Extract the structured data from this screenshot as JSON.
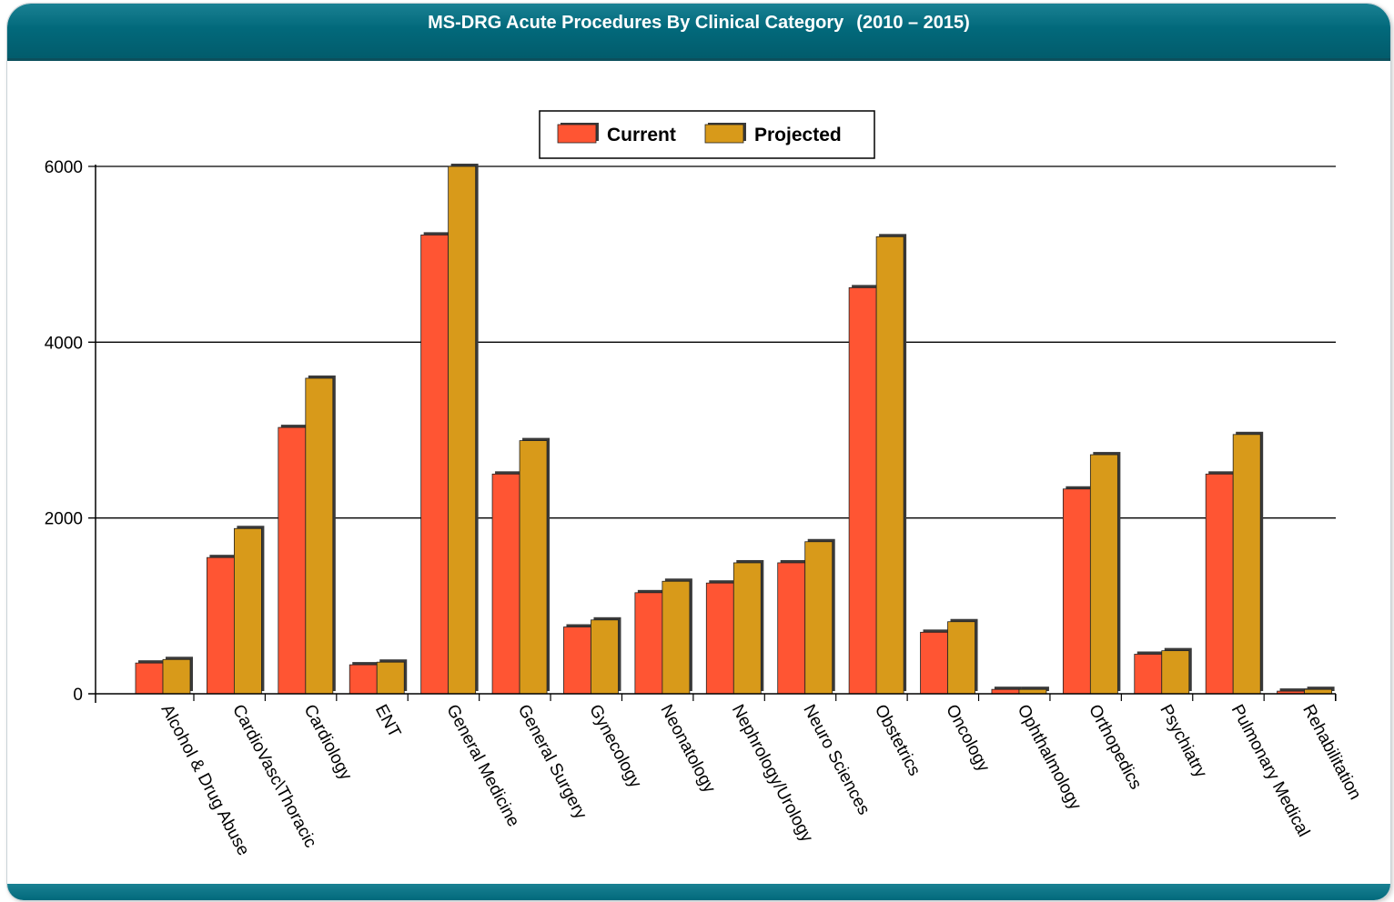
{
  "header": {
    "title": "MS-DRG Acute Procedures By Clinical Category",
    "subtitle": "(2010 – 2015)"
  },
  "colors": {
    "header_bg": "#02697b",
    "current": "#ff5533",
    "projected": "#d89a1a"
  },
  "chart_data": {
    "type": "bar",
    "categories": [
      "Alcohol & Drug Abuse",
      "CardioVasc\\Thoracic",
      "Cardiology",
      "ENT",
      "General Medicine",
      "General Surgery",
      "Gynecology",
      "Neonatology",
      "Nephrology/Urology",
      "Neuro Sciences",
      "Obstetrics",
      "Oncology",
      "Ophthalmology",
      "Orthopedics",
      "Psychiatry",
      "Pulmonary Medical",
      "Rehabilitation"
    ],
    "series": [
      {
        "name": "Current",
        "values": [
          350,
          1550,
          3030,
          330,
          5220,
          2500,
          760,
          1150,
          1260,
          1490,
          4620,
          700,
          50,
          2330,
          450,
          2500,
          30
        ]
      },
      {
        "name": "Projected",
        "values": [
          390,
          1880,
          3590,
          360,
          6000,
          2880,
          840,
          1280,
          1490,
          1730,
          5200,
          820,
          50,
          2720,
          490,
          2950,
          50
        ]
      }
    ],
    "yticks": [
      "0",
      "2000",
      "4000",
      "6000"
    ],
    "ylim": [
      0,
      6000
    ],
    "grid": true,
    "legend_position": "top-center"
  }
}
